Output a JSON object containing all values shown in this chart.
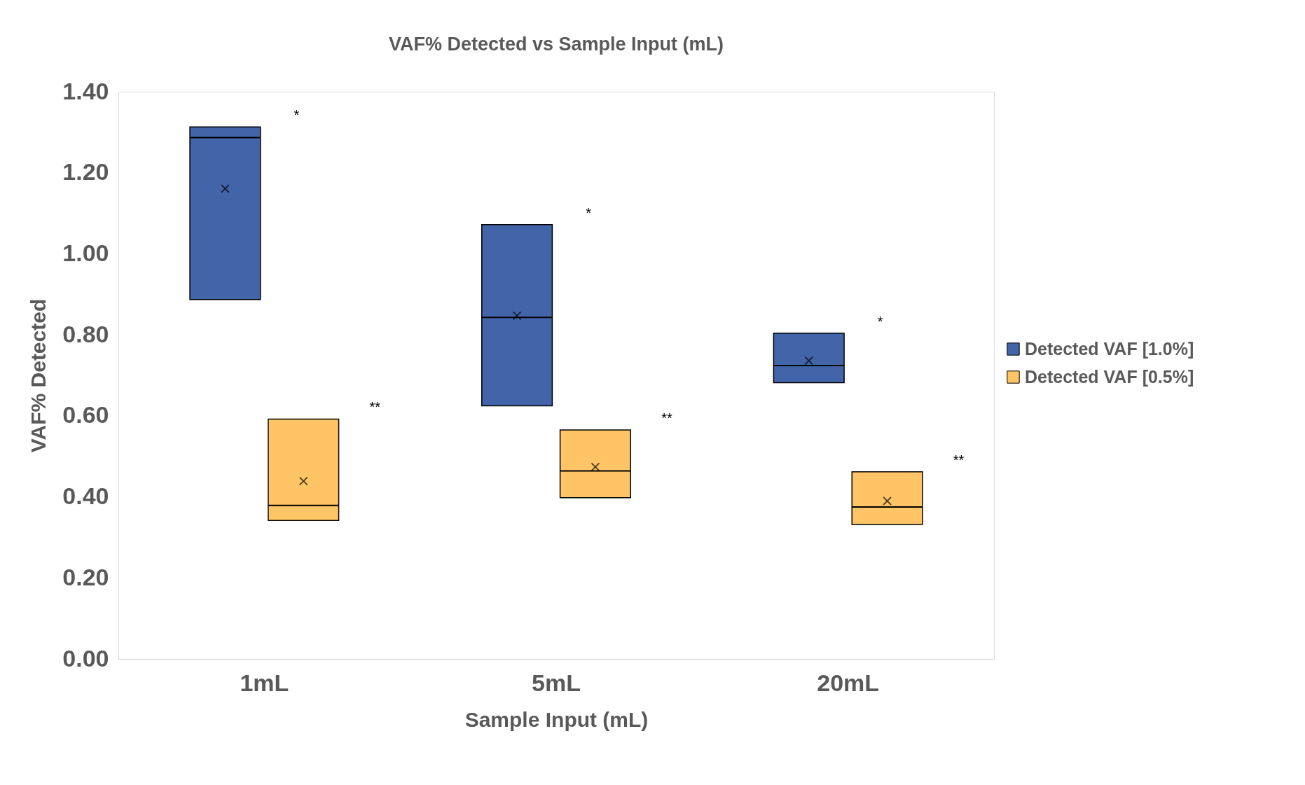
{
  "chart_data": {
    "type": "box",
    "title": "VAF% Detected vs Sample Input (mL)",
    "xlabel": "Sample Input (mL)",
    "ylabel": "VAF% Detected",
    "categories": [
      "1mL",
      "5mL",
      "20mL"
    ],
    "series": [
      {
        "name": "Detected VAF [1.0%]",
        "color": "#4165a8",
        "boxes": [
          {
            "low": 0.887,
            "q1": 0.887,
            "median": 1.287,
            "q3": 1.313,
            "high": 1.313,
            "mean": 1.161
          },
          {
            "low": 0.625,
            "q1": 0.625,
            "median": 0.843,
            "q3": 1.072,
            "high": 1.072,
            "mean": 0.847
          },
          {
            "low": 0.682,
            "q1": 0.682,
            "median": 0.724,
            "q3": 0.804,
            "high": 0.804,
            "mean": 0.736
          }
        ]
      },
      {
        "name": "Detected VAF [0.5%]",
        "color": "#ffc466",
        "boxes": [
          {
            "low": 0.342,
            "q1": 0.342,
            "median": 0.379,
            "q3": 0.592,
            "high": 0.592,
            "mean": 0.439
          },
          {
            "low": 0.398,
            "q1": 0.398,
            "median": 0.464,
            "q3": 0.565,
            "high": 0.565,
            "mean": 0.474
          },
          {
            "low": 0.332,
            "q1": 0.332,
            "median": 0.375,
            "q3": 0.462,
            "high": 0.462,
            "mean": 0.39
          }
        ]
      }
    ],
    "ylim": [
      0,
      1.4
    ],
    "yticks": [
      {
        "value": 0,
        "label": "0.00"
      },
      {
        "value": 0.2,
        "label": "0.20"
      },
      {
        "value": 0.4,
        "label": "0.40"
      },
      {
        "value": 0.6,
        "label": "0.60"
      },
      {
        "value": 0.8,
        "label": "0.80"
      },
      {
        "value": 1.0,
        "label": "1.00"
      },
      {
        "value": 1.2,
        "label": "1.20"
      },
      {
        "value": 1.4,
        "label": "1.40"
      }
    ],
    "grid": false,
    "legend": "right",
    "marker": "cross",
    "annotations": [
      "*",
      "**",
      "*",
      "**",
      "*",
      "**"
    ]
  }
}
